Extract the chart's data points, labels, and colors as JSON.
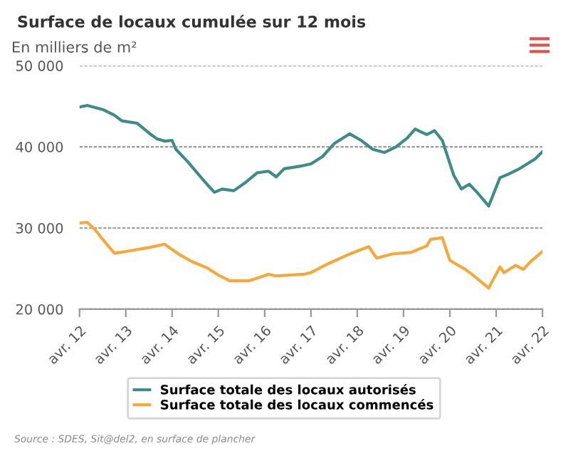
{
  "chart_data": {
    "type": "line",
    "title": "Surface de locaux cumulée sur 12 mois",
    "ylabel": "En milliers de m²",
    "series": [
      {
        "name": "Surface totale des locaux autorisés",
        "color": "#3d8c86",
        "x": [
          "2012-04",
          "2012-06",
          "2012-10",
          "2013-01",
          "2013-03",
          "2013-07",
          "2013-10",
          "2013-12",
          "2014-02",
          "2014-04",
          "2014-05",
          "2014-08",
          "2014-11",
          "2015-01",
          "2015-03",
          "2015-05",
          "2015-08",
          "2015-11",
          "2016-02",
          "2016-05",
          "2016-07",
          "2016-09",
          "2017-01",
          "2017-04",
          "2017-07",
          "2017-10",
          "2018-02",
          "2018-05",
          "2018-08",
          "2018-11",
          "2019-02",
          "2019-05",
          "2019-07",
          "2019-10",
          "2019-12",
          "2020-02",
          "2020-05",
          "2020-07",
          "2020-09",
          "2020-11",
          "2021-02",
          "2021-05",
          "2021-07",
          "2021-10",
          "2022-02",
          "2022-04"
        ],
        "values": [
          44900,
          45100,
          44600,
          43900,
          43200,
          42900,
          41700,
          41000,
          40700,
          40800,
          39700,
          38200,
          36500,
          35400,
          34400,
          34800,
          34600,
          35600,
          36800,
          37000,
          36300,
          37300,
          37600,
          37900,
          38800,
          40400,
          41600,
          40800,
          39700,
          39300,
          40000,
          41100,
          42200,
          41500,
          42000,
          40800,
          36500,
          34800,
          35400,
          34400,
          32700,
          36200,
          36600,
          37300,
          38500,
          39400
        ]
      },
      {
        "name": "Surface totale des locaux commencés",
        "color": "#f5a93a",
        "x": [
          "2012-04",
          "2012-06",
          "2012-08",
          "2012-10",
          "2013-01",
          "2013-04",
          "2013-10",
          "2014-02",
          "2014-06",
          "2014-09",
          "2015-01",
          "2015-04",
          "2015-07",
          "2015-12",
          "2016-05",
          "2016-07",
          "2017-02",
          "2017-04",
          "2017-08",
          "2018-02",
          "2018-07",
          "2018-09",
          "2019-01",
          "2019-06",
          "2019-10",
          "2019-11",
          "2020-02",
          "2020-04",
          "2020-08",
          "2020-10",
          "2021-02",
          "2021-05",
          "2021-06",
          "2021-09",
          "2021-11",
          "2022-01",
          "2022-04"
        ],
        "values": [
          30600,
          30700,
          29800,
          28600,
          26900,
          27100,
          27600,
          28000,
          26700,
          25900,
          25100,
          24200,
          23500,
          23500,
          24300,
          24100,
          24300,
          24500,
          25500,
          26800,
          27700,
          26300,
          26800,
          27000,
          27800,
          28600,
          28800,
          26000,
          24900,
          24200,
          22600,
          25200,
          24500,
          25400,
          24900,
          25900,
          27100
        ]
      }
    ],
    "xlim": [
      "2012-04",
      "2022-04"
    ],
    "xticks": [
      {
        "value": "2012-04",
        "label": "avr. 12"
      },
      {
        "value": "2013-04",
        "label": "avr. 13"
      },
      {
        "value": "2014-04",
        "label": "avr. 14"
      },
      {
        "value": "2015-04",
        "label": "avr. 15"
      },
      {
        "value": "2016-04",
        "label": "avr. 16"
      },
      {
        "value": "2017-04",
        "label": "avr. 17"
      },
      {
        "value": "2018-04",
        "label": "avr. 18"
      },
      {
        "value": "2019-04",
        "label": "avr. 19"
      },
      {
        "value": "2020-04",
        "label": "avr. 20"
      },
      {
        "value": "2021-04",
        "label": "avr. 21"
      },
      {
        "value": "2022-04",
        "label": "avr. 22"
      }
    ],
    "ylim": [
      20000,
      50000
    ],
    "yticks": [
      {
        "value": 20000,
        "label": "20 000"
      },
      {
        "value": 30000,
        "label": "30 000"
      },
      {
        "value": 40000,
        "label": "40 000"
      },
      {
        "value": 50000,
        "label": "50 000"
      }
    ],
    "grid": "y",
    "legend": "bottom",
    "marker": "none",
    "line_style": "solid",
    "annotations": [
      "Source : SDES, Sit@del2, en surface de plancher"
    ]
  }
}
